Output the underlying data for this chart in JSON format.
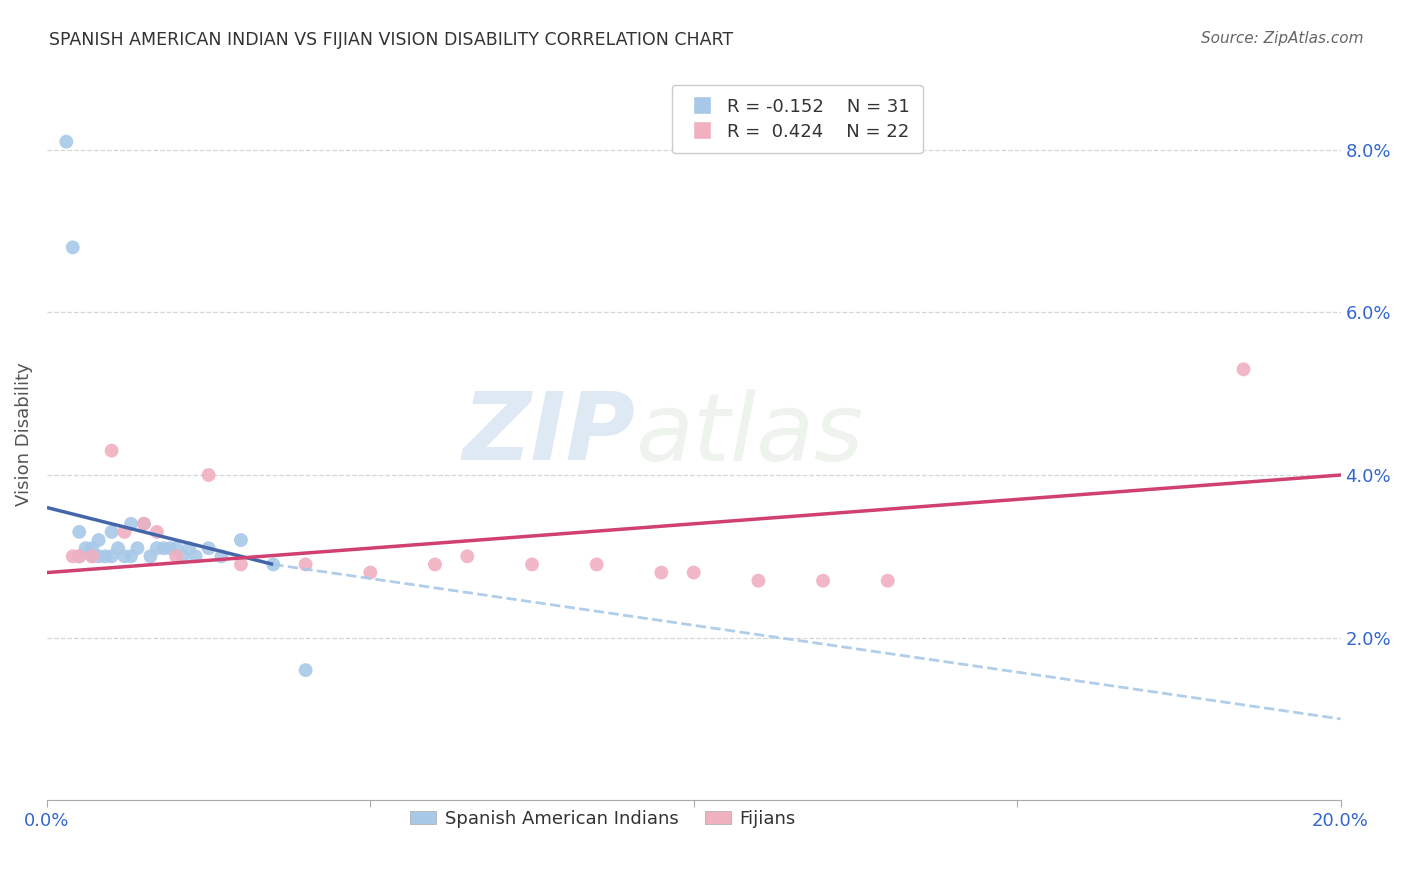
{
  "title": "SPANISH AMERICAN INDIAN VS FIJIAN VISION DISABILITY CORRELATION CHART",
  "source": "Source: ZipAtlas.com",
  "ylabel": "Vision Disability",
  "xlim": [
    0.0,
    0.2
  ],
  "ylim": [
    0.0,
    0.09
  ],
  "xticks": [
    0.0,
    0.05,
    0.1,
    0.15,
    0.2
  ],
  "xtick_labels": [
    "0.0%",
    "",
    "",
    "",
    "20.0%"
  ],
  "yticks": [
    0.0,
    0.02,
    0.04,
    0.06,
    0.08
  ],
  "ytick_labels": [
    "",
    "2.0%",
    "4.0%",
    "6.0%",
    "8.0%"
  ],
  "color_blue": "#a8c8e8",
  "color_pink": "#f0b0c0",
  "line_blue": "#4466aa",
  "line_pink": "#d04070",
  "blue_x": [
    0.003,
    0.004,
    0.005,
    0.005,
    0.006,
    0.007,
    0.007,
    0.008,
    0.008,
    0.009,
    0.01,
    0.01,
    0.011,
    0.012,
    0.013,
    0.013,
    0.014,
    0.015,
    0.016,
    0.017,
    0.018,
    0.019,
    0.02,
    0.021,
    0.022,
    0.023,
    0.025,
    0.027,
    0.03,
    0.035,
    0.04
  ],
  "blue_y": [
    0.081,
    0.068,
    0.033,
    0.03,
    0.031,
    0.031,
    0.03,
    0.032,
    0.03,
    0.03,
    0.033,
    0.03,
    0.031,
    0.03,
    0.034,
    0.03,
    0.031,
    0.034,
    0.03,
    0.031,
    0.031,
    0.031,
    0.031,
    0.03,
    0.031,
    0.03,
    0.031,
    0.03,
    0.032,
    0.029,
    0.016
  ],
  "pink_x": [
    0.004,
    0.005,
    0.007,
    0.01,
    0.012,
    0.015,
    0.017,
    0.02,
    0.03,
    0.04,
    0.05,
    0.06,
    0.065,
    0.075,
    0.085,
    0.095,
    0.1,
    0.11,
    0.12,
    0.13,
    0.185,
    0.025
  ],
  "pink_y": [
    0.03,
    0.03,
    0.03,
    0.043,
    0.033,
    0.034,
    0.033,
    0.03,
    0.029,
    0.029,
    0.028,
    0.029,
    0.03,
    0.029,
    0.029,
    0.028,
    0.028,
    0.027,
    0.027,
    0.027,
    0.053,
    0.04
  ],
  "blue_line_x_start": 0.0,
  "blue_line_x_solid_end": 0.035,
  "blue_line_x_dash_end": 0.2,
  "blue_line_y_start": 0.036,
  "blue_line_y_solid_end": 0.029,
  "blue_line_y_dash_end": 0.01,
  "pink_line_x_start": 0.0,
  "pink_line_x_end": 0.2,
  "pink_line_y_start": 0.028,
  "pink_line_y_end": 0.04,
  "watermark_zip": "ZIP",
  "watermark_atlas": "atlas",
  "background_color": "#ffffff",
  "grid_color": "#cccccc"
}
